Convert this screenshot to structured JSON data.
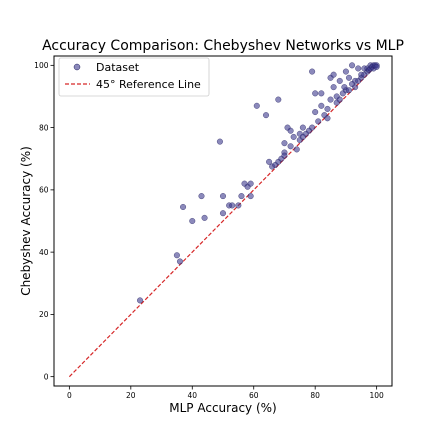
{
  "chart_data": {
    "type": "scatter",
    "title": "Accuracy Comparison: Chebyshev Networks vs MLP",
    "xlabel": "MLP Accuracy (%)",
    "ylabel": "Chebyshev Accuracy (%)",
    "xlim": [
      -5,
      105
    ],
    "ylim": [
      -3,
      103
    ],
    "xticks": [
      "0",
      "20",
      "40",
      "60",
      "80",
      "100"
    ],
    "yticks": [
      "0",
      "20",
      "40",
      "60",
      "80",
      "100"
    ],
    "grid": false,
    "legend_position": "top-left",
    "colors": {
      "points": "#3d3b8e",
      "reference": "#d62728"
    },
    "series": [
      {
        "name": "Dataset",
        "kind": "scatter",
        "points": [
          [
            23,
            24.5
          ],
          [
            35,
            39
          ],
          [
            36,
            37
          ],
          [
            37,
            54.5
          ],
          [
            40,
            50
          ],
          [
            43,
            58
          ],
          [
            44,
            51
          ],
          [
            49,
            75.5
          ],
          [
            50,
            58
          ],
          [
            50,
            52.5
          ],
          [
            52,
            55
          ],
          [
            53,
            55
          ],
          [
            55,
            55
          ],
          [
            56,
            58
          ],
          [
            57,
            62
          ],
          [
            58,
            61
          ],
          [
            59,
            62
          ],
          [
            59,
            58
          ],
          [
            61,
            87
          ],
          [
            64,
            84
          ],
          [
            65,
            69
          ],
          [
            66,
            67.5
          ],
          [
            67,
            68
          ],
          [
            68,
            69
          ],
          [
            68,
            89
          ],
          [
            69,
            70
          ],
          [
            70,
            72
          ],
          [
            70,
            75
          ],
          [
            70,
            71
          ],
          [
            71,
            80
          ],
          [
            72,
            79
          ],
          [
            72,
            74
          ],
          [
            73,
            77
          ],
          [
            74,
            73
          ],
          [
            75,
            76
          ],
          [
            75,
            78
          ],
          [
            76,
            80
          ],
          [
            77,
            78
          ],
          [
            78,
            79
          ],
          [
            79,
            98
          ],
          [
            80,
            85
          ],
          [
            80,
            91
          ],
          [
            82,
            87
          ],
          [
            82,
            91
          ],
          [
            83,
            84
          ],
          [
            84,
            83
          ],
          [
            85,
            89
          ],
          [
            85,
            96
          ],
          [
            86,
            97
          ],
          [
            86,
            93
          ],
          [
            87,
            88
          ],
          [
            87,
            90
          ],
          [
            88,
            89
          ],
          [
            88,
            95
          ],
          [
            89,
            91
          ],
          [
            90,
            92
          ],
          [
            90,
            98
          ],
          [
            91,
            92
          ],
          [
            91,
            96
          ],
          [
            92,
            100
          ],
          [
            92,
            94
          ],
          [
            93,
            93
          ],
          [
            93,
            95
          ],
          [
            94,
            99
          ],
          [
            94,
            95
          ],
          [
            95,
            96
          ],
          [
            95,
            97
          ],
          [
            96,
            97
          ],
          [
            96,
            99
          ],
          [
            97,
            98
          ],
          [
            97,
            99
          ],
          [
            97.5,
            98.5
          ],
          [
            98,
            99
          ],
          [
            98,
            100
          ],
          [
            98.5,
            99.5
          ],
          [
            99,
            99
          ],
          [
            99,
            100
          ],
          [
            99.5,
            100
          ],
          [
            100,
            100
          ],
          [
            100,
            99.5
          ],
          [
            89.5,
            93
          ],
          [
            84,
            86
          ],
          [
            79,
            80
          ],
          [
            81,
            82
          ],
          [
            76,
            77
          ]
        ]
      },
      {
        "name": "45° Reference Line",
        "kind": "line",
        "points": [
          [
            0,
            0
          ],
          [
            100,
            100
          ]
        ]
      }
    ]
  }
}
